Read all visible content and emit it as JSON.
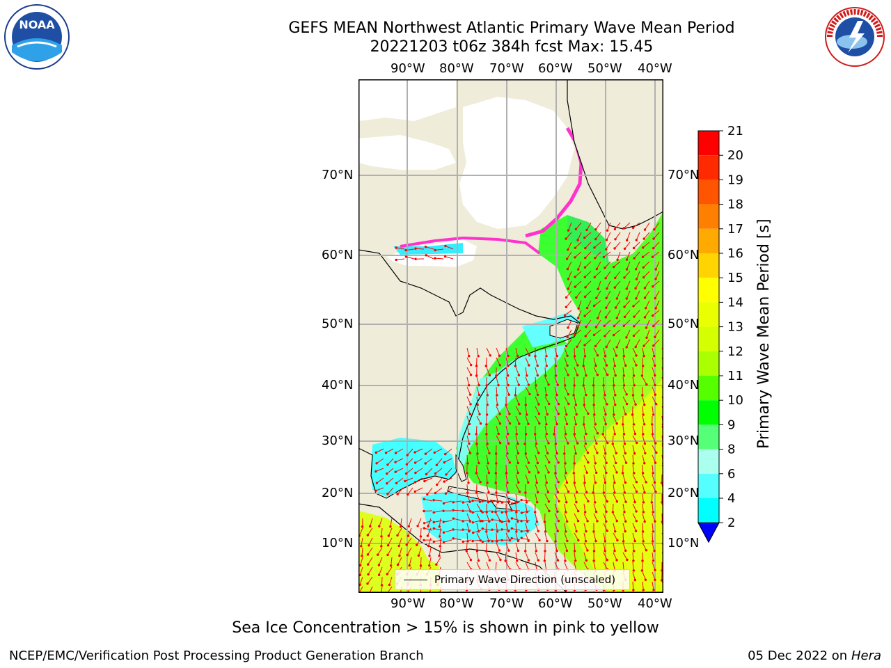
{
  "title": {
    "line1": "GEFS MEAN Northwest Atlantic Primary Wave Mean Period",
    "line2": "20221203 t06z 384h fcst   Max: 15.45"
  },
  "logos": {
    "noaa_text": "NOAA",
    "nws_text": "NATIONAL WEATHER SERVICE"
  },
  "lon_ticks": [
    "90°W",
    "80°W",
    "70°W",
    "60°W",
    "50°W",
    "40°W"
  ],
  "lat_ticks": [
    "70°N",
    "60°N",
    "50°N",
    "40°N",
    "30°N",
    "20°N",
    "10°N"
  ],
  "colorbar": {
    "label": "Primary Wave Mean Period [s]",
    "ticks": [
      "21",
      "20",
      "19",
      "18",
      "17",
      "16",
      "15",
      "14",
      "13",
      "12",
      "11",
      "10",
      "9",
      "8",
      "6",
      "4",
      "2"
    ],
    "colors": [
      "#ff0000",
      "#ff2a00",
      "#ff5500",
      "#ff7f00",
      "#ffaa00",
      "#ffd400",
      "#ffff00",
      "#eaff00",
      "#d4ff00",
      "#aaff00",
      "#55ff00",
      "#00ff00",
      "#55ff77",
      "#aaffee",
      "#55ffff",
      "#00ffff",
      "#00aaff",
      "#0055ff"
    ],
    "extend_color": "#0000ff"
  },
  "legend": {
    "label": "Primary Wave Direction (unscaled)"
  },
  "caption": "Sea Ice Concentration > 15% is shown in pink to yellow",
  "footer": {
    "left": "NCEP/EMC/Verification Post Processing Product Generation Branch",
    "date": "05 Dec 2022 on",
    "host": "Hera"
  },
  "colors": {
    "land": "#efecda",
    "ice_open": "#ffffff",
    "arrow": "#ff0000",
    "grid": "#b0b0b0",
    "ice_edge": "#ff33cc"
  }
}
